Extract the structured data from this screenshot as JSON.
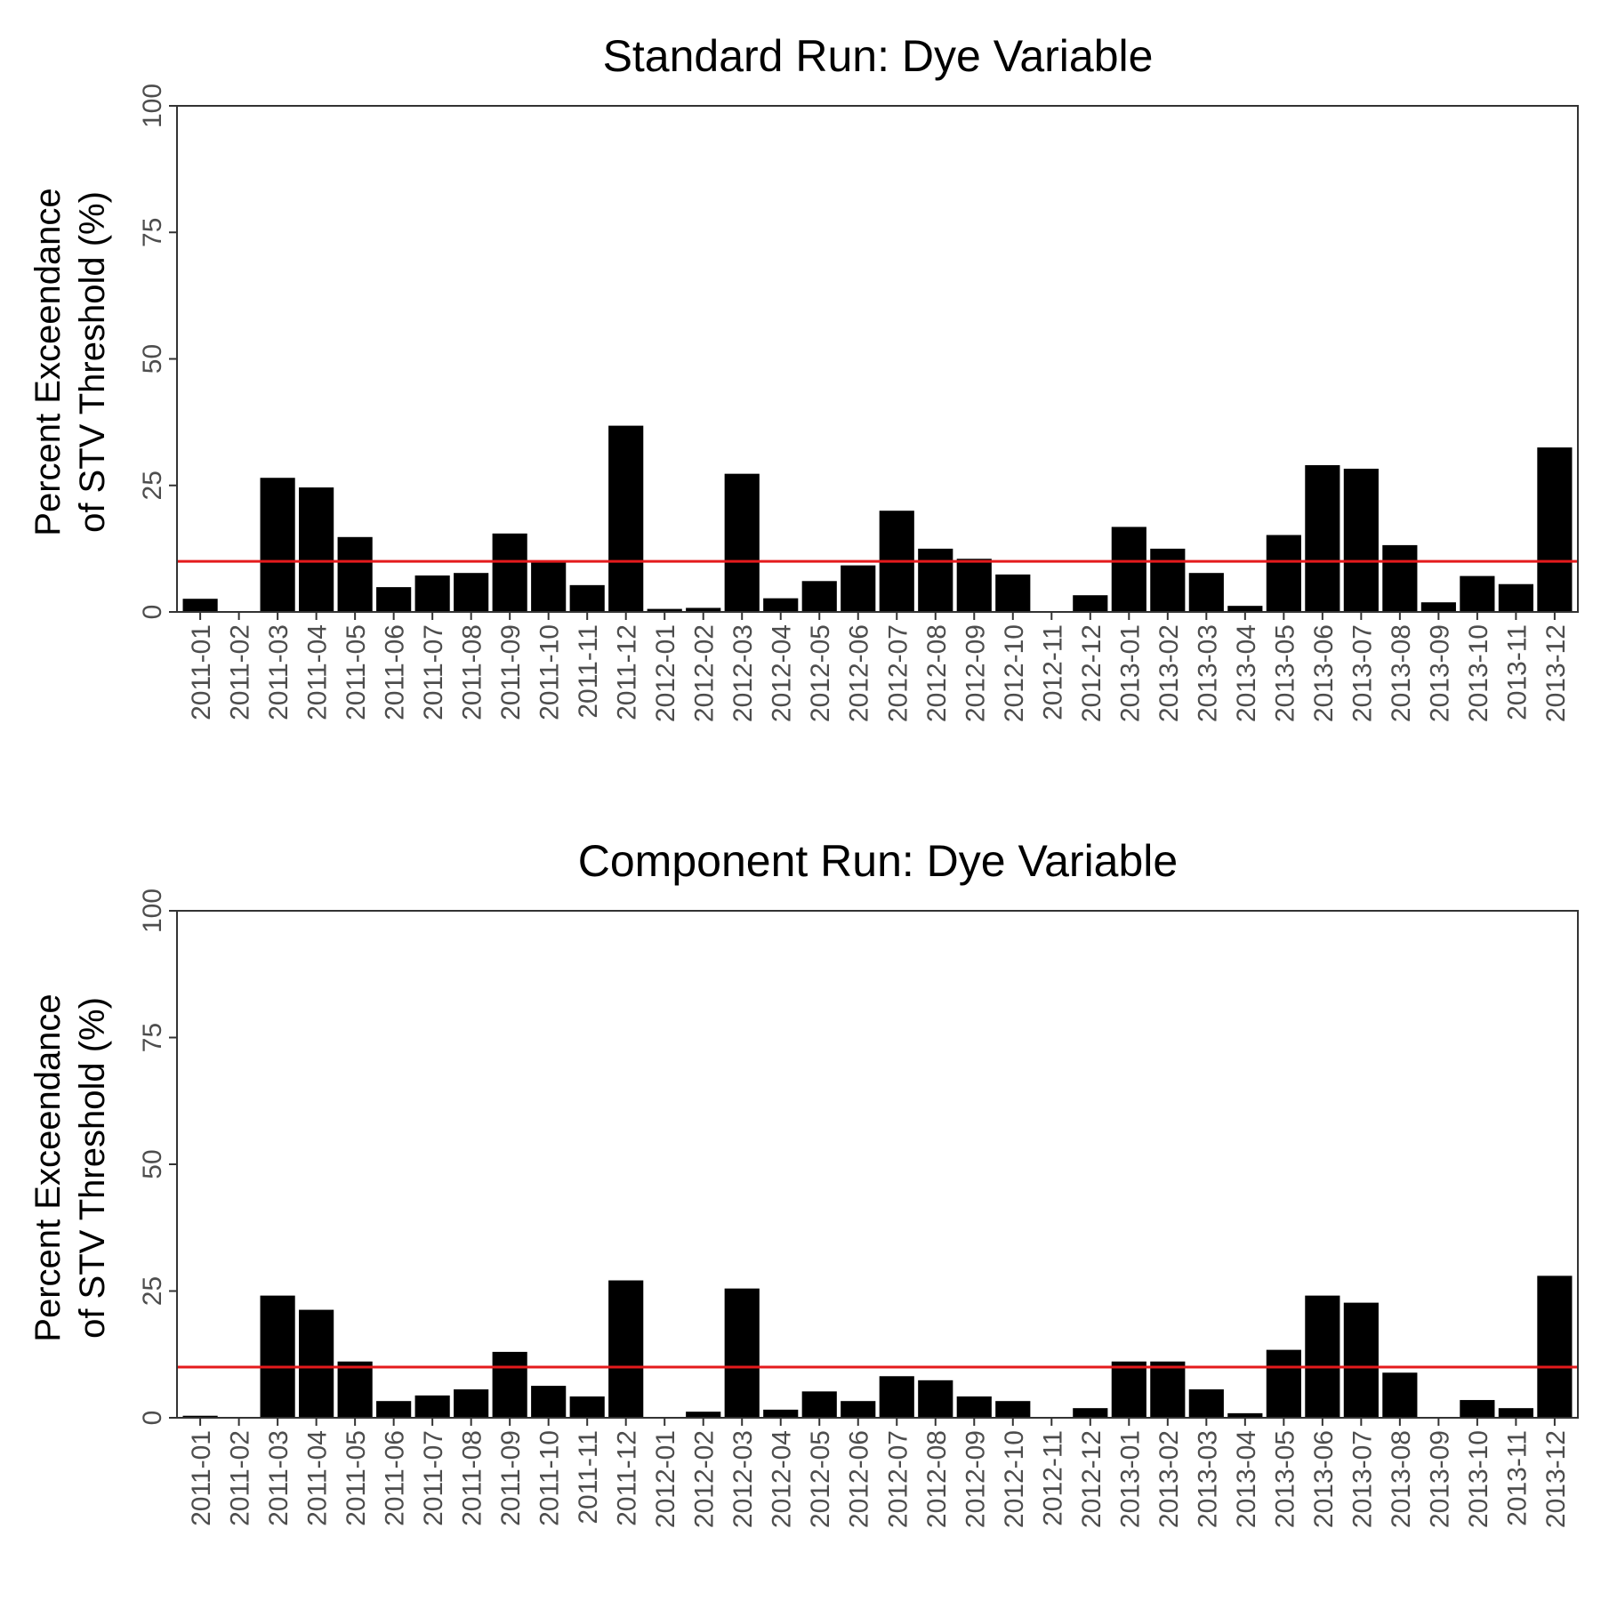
{
  "threshold_color": "#e41a1c",
  "bar_color": "#000000",
  "chart_data": [
    {
      "type": "bar",
      "title": "Standard Run: Dye Variable",
      "ylabel_line1": "Percent Exceendance",
      "ylabel_line2": "of STV Threshold (%)",
      "xlabel": "",
      "ylim": [
        0,
        100
      ],
      "yticks": [
        "0",
        "25",
        "50",
        "75",
        "100"
      ],
      "threshold": 10,
      "grid": false,
      "categories": [
        "2011-01",
        "2011-02",
        "2011-03",
        "2011-04",
        "2011-05",
        "2011-06",
        "2011-07",
        "2011-08",
        "2011-09",
        "2011-10",
        "2011-11",
        "2011-12",
        "2012-01",
        "2012-02",
        "2012-03",
        "2012-04",
        "2012-05",
        "2012-06",
        "2012-07",
        "2012-08",
        "2012-09",
        "2012-10",
        "2012-11",
        "2012-12",
        "2013-01",
        "2013-02",
        "2013-03",
        "2013-04",
        "2013-05",
        "2013-06",
        "2013-07",
        "2013-08",
        "2013-09",
        "2013-10",
        "2013-11",
        "2013-12"
      ],
      "values": [
        2.6,
        0,
        26.5,
        24.6,
        14.8,
        4.9,
        7.2,
        7.7,
        15.5,
        9.8,
        5.3,
        36.8,
        0.6,
        0.8,
        27.3,
        2.7,
        6.1,
        9.2,
        20.0,
        12.5,
        10.5,
        7.4,
        0,
        3.3,
        16.8,
        12.5,
        7.7,
        1.2,
        15.2,
        29.0,
        28.3,
        13.2,
        1.9,
        7.1,
        5.5,
        32.5
      ]
    },
    {
      "type": "bar",
      "title": "Component Run: Dye Variable",
      "ylabel_line1": "Percent Exceendance",
      "ylabel_line2": "of STV Threshold (%)",
      "xlabel": "",
      "ylim": [
        0,
        100
      ],
      "yticks": [
        "0",
        "25",
        "50",
        "75",
        "100"
      ],
      "threshold": 10,
      "grid": false,
      "categories": [
        "2011-01",
        "2011-02",
        "2011-03",
        "2011-04",
        "2011-05",
        "2011-06",
        "2011-07",
        "2011-08",
        "2011-09",
        "2011-10",
        "2011-11",
        "2011-12",
        "2012-01",
        "2012-02",
        "2012-03",
        "2012-04",
        "2012-05",
        "2012-06",
        "2012-07",
        "2012-08",
        "2012-09",
        "2012-10",
        "2012-11",
        "2012-12",
        "2013-01",
        "2013-02",
        "2013-03",
        "2013-04",
        "2013-05",
        "2013-06",
        "2013-07",
        "2013-08",
        "2013-09",
        "2013-10",
        "2013-11",
        "2013-12"
      ],
      "values": [
        0.4,
        0,
        24.1,
        21.3,
        11.1,
        3.3,
        4.4,
        5.6,
        13.0,
        6.3,
        4.2,
        27.1,
        0,
        1.2,
        25.5,
        1.6,
        5.2,
        3.3,
        8.2,
        7.4,
        4.2,
        3.3,
        0,
        1.9,
        11.1,
        11.1,
        5.6,
        0.9,
        13.4,
        24.1,
        22.7,
        8.9,
        0,
        3.5,
        1.9,
        28.0
      ]
    }
  ]
}
